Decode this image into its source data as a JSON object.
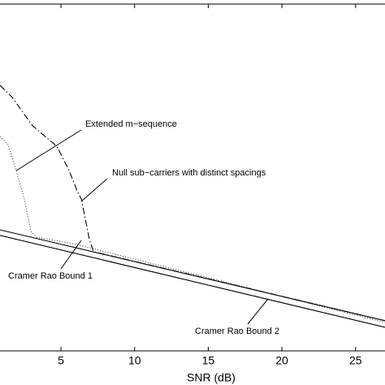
{
  "chart_data": {
    "type": "line",
    "xlabel": "SNR (dB)",
    "xlim": [
      0.86,
      27.0
    ],
    "xticks": [
      5,
      10,
      15,
      20,
      25
    ],
    "ylim": [
      0,
      100
    ],
    "series": [
      {
        "name": "Null sub−carriers with distinct spacings",
        "color": "#000000",
        "style": "dashdot",
        "x": [
          0.86,
          1.69,
          3.07,
          4.72,
          5.55,
          6.1,
          6.38,
          6.66,
          6.93,
          7.21,
          27.0
        ],
        "values": [
          76.6,
          73.1,
          64.9,
          59.0,
          52.0,
          46.1,
          43.8,
          37.9,
          32.1,
          28.6,
          8.7
        ]
      },
      {
        "name": "Extended m−sequence",
        "color": "#555555",
        "style": "dotted",
        "x": [
          0.86,
          1.41,
          1.96,
          2.51,
          2.96,
          3.34,
          5.83,
          27.0
        ],
        "values": [
          61.8,
          59.5,
          52.0,
          43.8,
          34.4,
          32.8,
          30.9,
          8.2
        ]
      },
      {
        "name": "Cramer Rao Bound 1",
        "color": "#000000",
        "style": "solid",
        "x": [
          0.86,
          27.0
        ],
        "values": [
          34.9,
          8.7
        ]
      },
      {
        "name": "Cramer Rao Bound 2",
        "color": "#000000",
        "style": "solid",
        "x": [
          0.86,
          27.0
        ],
        "values": [
          33.3,
          6.8
        ]
      }
    ]
  }
}
